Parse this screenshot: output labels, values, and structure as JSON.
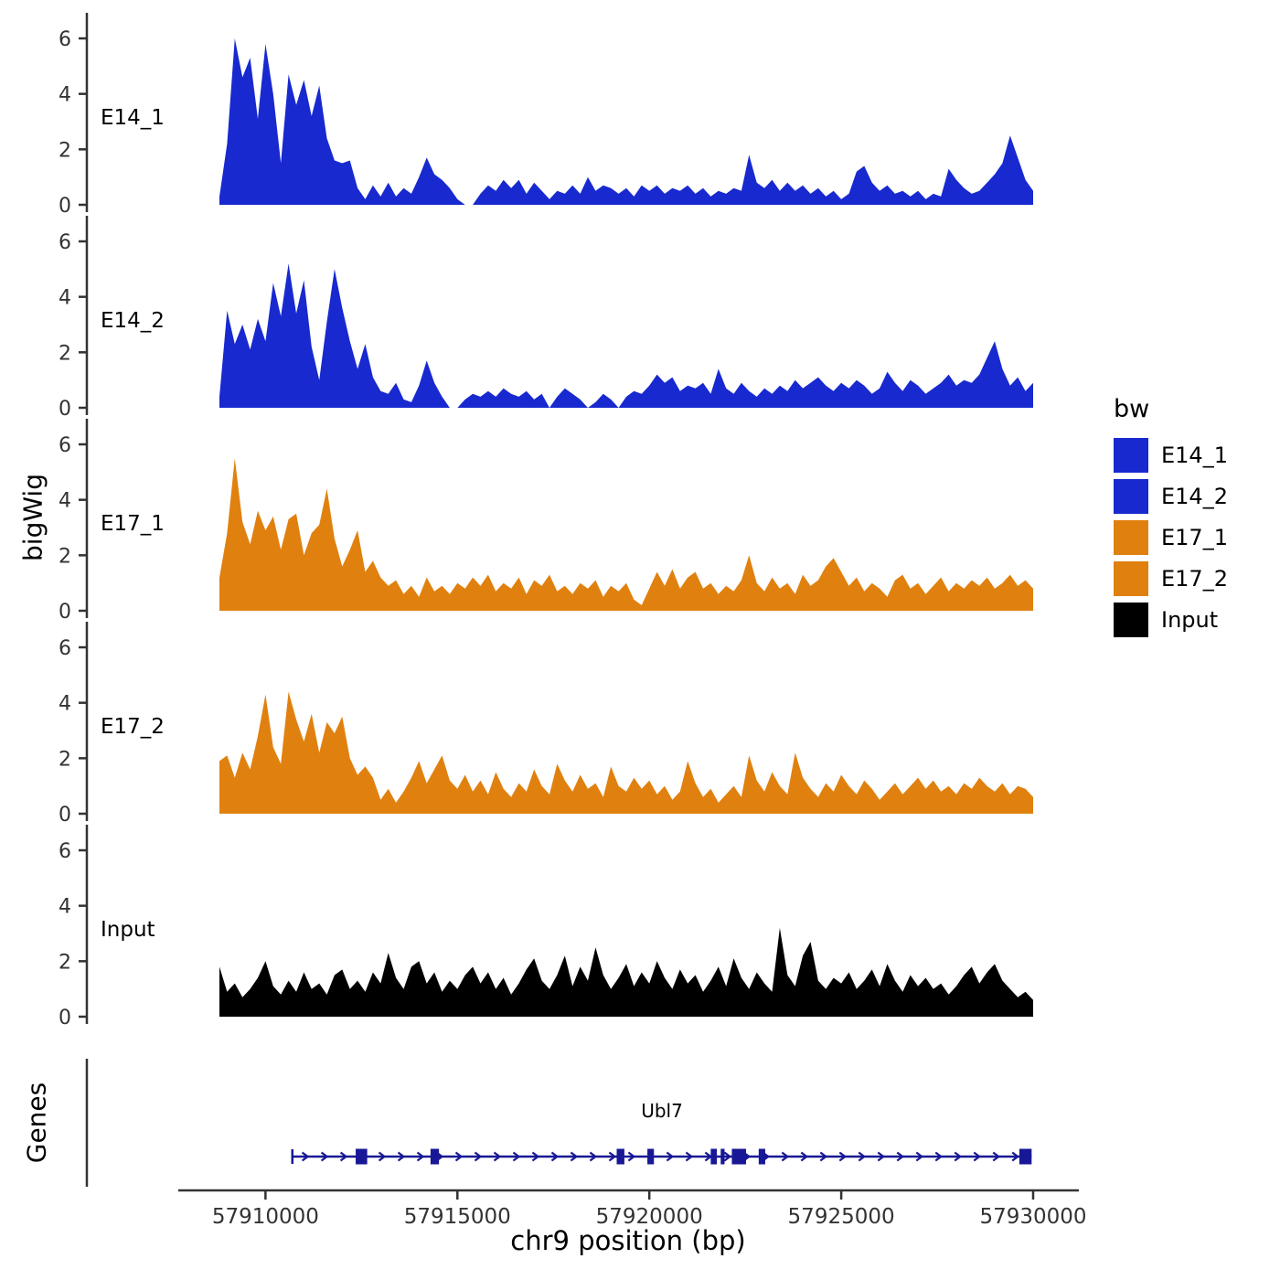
{
  "figure": {
    "y_axis_label": "bigWig",
    "genes_panel_label": "Genes",
    "x_axis_title": "chr9 position (bp)"
  },
  "legend": {
    "title": "bw",
    "items": [
      {
        "label": "E14_1",
        "color": "#1729CF"
      },
      {
        "label": "E14_2",
        "color": "#1729CF"
      },
      {
        "label": "E17_1",
        "color": "#E0810F"
      },
      {
        "label": "E17_2",
        "color": "#E0810F"
      },
      {
        "label": "Input",
        "color": "#000000"
      }
    ]
  },
  "chart_data": {
    "type": "area",
    "title": "",
    "xlabel": "chr9 position (bp)",
    "ylabel": "bigWig",
    "ylim": [
      0,
      6
    ],
    "y_ticks": [
      0,
      2,
      4,
      6
    ],
    "x_range": [
      57907800,
      57931200
    ],
    "x_ticks": [
      57910000,
      57915000,
      57920000,
      57925000,
      57930000
    ],
    "x_tick_labels": [
      "57910000",
      "57915000",
      "57920000",
      "57925000",
      "57930000"
    ],
    "x_start": 57908800,
    "x_step": 200,
    "axis_color": "#333333",
    "series": [
      {
        "name": "E14_1",
        "color": "#1729CF",
        "values": [
          0.3,
          2.2,
          6,
          4.6,
          5.3,
          3.1,
          5.8,
          4,
          1.5,
          4.7,
          3.6,
          4.5,
          3.2,
          4.3,
          2.4,
          1.6,
          1.5,
          1.6,
          0.6,
          0.2,
          0.7,
          0.3,
          0.8,
          0.3,
          0.6,
          0.4,
          1,
          1.7,
          1.1,
          0.9,
          0.6,
          0.2,
          0,
          0,
          0.4,
          0.7,
          0.5,
          0.9,
          0.6,
          0.9,
          0.4,
          0.8,
          0.5,
          0.2,
          0.5,
          0.4,
          0.7,
          0.4,
          1,
          0.5,
          0.7,
          0.6,
          0.4,
          0.6,
          0.3,
          0.7,
          0.5,
          0.7,
          0.4,
          0.6,
          0.5,
          0.7,
          0.4,
          0.6,
          0.3,
          0.5,
          0.4,
          0.6,
          0.5,
          1.8,
          0.8,
          0.6,
          0.9,
          0.5,
          0.8,
          0.5,
          0.7,
          0.4,
          0.6,
          0.3,
          0.5,
          0.2,
          0.4,
          1.2,
          1.4,
          0.8,
          0.5,
          0.7,
          0.4,
          0.5,
          0.3,
          0.5,
          0.2,
          0.4,
          0.3,
          1.3,
          0.9,
          0.6,
          0.4,
          0.5,
          0.8,
          1.1,
          1.5,
          2.5,
          1.7,
          0.9,
          0.5
        ]
      },
      {
        "name": "E14_2",
        "color": "#1729CF",
        "values": [
          0.4,
          3.5,
          2.3,
          3,
          2.1,
          3.2,
          2.4,
          4.5,
          3.3,
          5.2,
          3.4,
          4.6,
          2.2,
          1,
          3.1,
          5,
          3.6,
          2.4,
          1.4,
          2.3,
          1.1,
          0.6,
          0.5,
          0.9,
          0.3,
          0.2,
          0.8,
          1.7,
          0.9,
          0.4,
          0,
          0,
          0.3,
          0.5,
          0.4,
          0.6,
          0.4,
          0.7,
          0.5,
          0.4,
          0.6,
          0.3,
          0.5,
          0,
          0.4,
          0.7,
          0.5,
          0.3,
          0,
          0.2,
          0.5,
          0.3,
          0,
          0.4,
          0.6,
          0.5,
          0.8,
          1.2,
          0.9,
          1.1,
          0.6,
          0.8,
          0.7,
          0.9,
          0.5,
          1.4,
          0.7,
          0.5,
          0.9,
          0.6,
          0.4,
          0.7,
          0.5,
          0.8,
          0.6,
          1,
          0.7,
          0.9,
          1.1,
          0.8,
          0.6,
          0.9,
          0.7,
          1,
          0.8,
          0.5,
          0.7,
          1.3,
          0.9,
          0.6,
          1,
          0.8,
          0.5,
          0.7,
          0.9,
          1.2,
          0.8,
          1,
          0.9,
          1.2,
          1.8,
          2.4,
          1.4,
          0.8,
          1.1,
          0.6,
          0.9
        ]
      },
      {
        "name": "E17_1",
        "color": "#E0810F",
        "values": [
          1.2,
          2.8,
          5.5,
          3.2,
          2.4,
          3.6,
          2.9,
          3.4,
          2.2,
          3.3,
          3.5,
          2,
          2.8,
          3.1,
          4.4,
          2.6,
          1.6,
          2.2,
          2.9,
          1.4,
          1.8,
          1.2,
          0.9,
          1.1,
          0.6,
          0.9,
          0.5,
          1.2,
          0.7,
          0.9,
          0.6,
          1,
          0.8,
          1.2,
          0.9,
          1.3,
          0.7,
          1,
          0.8,
          1.2,
          0.6,
          1.1,
          0.9,
          1.3,
          0.7,
          0.9,
          0.6,
          1,
          0.8,
          1.1,
          0.5,
          0.9,
          0.7,
          1,
          0.4,
          0.2,
          0.8,
          1.4,
          0.9,
          1.5,
          0.8,
          1.2,
          1.4,
          0.8,
          1,
          0.6,
          0.9,
          0.7,
          1.1,
          2,
          1,
          0.7,
          1.2,
          0.8,
          1,
          0.6,
          1.3,
          0.9,
          1.1,
          1.6,
          1.9,
          1.4,
          0.9,
          1.2,
          0.7,
          1,
          0.8,
          0.5,
          1.1,
          1.3,
          0.8,
          1,
          0.6,
          0.9,
          1.2,
          0.7,
          1,
          0.8,
          1.1,
          0.9,
          1.2,
          0.8,
          1,
          1.3,
          0.9,
          1.1,
          0.8
        ]
      },
      {
        "name": "E17_2",
        "color": "#E0810F",
        "values": [
          1.9,
          2.1,
          1.3,
          2.2,
          1.6,
          2.8,
          4.3,
          2.4,
          1.8,
          4.4,
          3.4,
          2.6,
          3.6,
          2.2,
          3.3,
          2.9,
          3.5,
          2,
          1.4,
          1.7,
          1.3,
          0.5,
          0.9,
          0.4,
          0.8,
          1.3,
          1.9,
          1.1,
          1.6,
          2.1,
          1.2,
          0.9,
          1.4,
          0.8,
          1.2,
          0.7,
          1.5,
          0.9,
          0.6,
          1.1,
          0.8,
          1.6,
          1,
          0.7,
          1.8,
          1.2,
          0.8,
          1.4,
          0.9,
          1.1,
          0.6,
          1.7,
          1,
          0.8,
          1.3,
          0.9,
          1.2,
          0.7,
          1,
          0.5,
          0.8,
          1.9,
          1.1,
          0.6,
          0.9,
          0.4,
          0.7,
          1,
          0.6,
          2.1,
          1.2,
          0.8,
          1.5,
          1,
          0.7,
          2.2,
          1.3,
          0.9,
          0.6,
          1.1,
          0.8,
          1.4,
          1,
          0.7,
          1.2,
          0.9,
          0.5,
          0.8,
          1.1,
          0.7,
          1,
          1.3,
          0.9,
          1.2,
          0.8,
          1,
          0.7,
          1.1,
          0.9,
          1.3,
          1,
          0.8,
          1.1,
          0.7,
          1,
          0.9,
          0.6
        ]
      },
      {
        "name": "Input",
        "color": "#000000",
        "values": [
          1.8,
          0.9,
          1.2,
          0.7,
          1,
          1.4,
          2,
          1.1,
          0.8,
          1.3,
          0.9,
          1.6,
          1,
          1.2,
          0.8,
          1.5,
          1.7,
          1,
          1.3,
          0.9,
          1.6,
          1.2,
          2.3,
          1.4,
          1,
          1.8,
          2,
          1.2,
          1.6,
          0.9,
          1.3,
          1,
          1.5,
          1.8,
          1.2,
          1.6,
          1,
          1.4,
          0.8,
          1.2,
          1.7,
          2.1,
          1.3,
          1,
          1.5,
          2.2,
          1.1,
          1.8,
          1.3,
          2.5,
          1.5,
          1,
          1.4,
          1.9,
          1.1,
          1.6,
          1.2,
          2,
          1.4,
          1,
          1.7,
          1.2,
          1.5,
          0.9,
          1.3,
          1.8,
          1.1,
          2.1,
          1.4,
          1,
          1.6,
          1.2,
          0.9,
          3.2,
          1.5,
          1.1,
          2.2,
          2.7,
          1.3,
          1,
          1.4,
          1.2,
          1.6,
          1,
          1.3,
          1.7,
          1.1,
          1.9,
          1.3,
          0.9,
          1.5,
          1.1,
          1.4,
          1,
          1.2,
          0.8,
          1.1,
          1.5,
          1.8,
          1.2,
          1.6,
          1.9,
          1.3,
          1,
          0.7,
          0.9,
          0.6
        ]
      }
    ],
    "gene_track": {
      "color": "#181896",
      "gene": {
        "name": "Ubl7",
        "strand": "+",
        "start": 57910700,
        "end": 57929960,
        "exons": [
          [
            57912350,
            57912650
          ],
          [
            57914300,
            57914520
          ],
          [
            57919150,
            57919350
          ],
          [
            57919950,
            57920120
          ],
          [
            57921600,
            57921760
          ],
          [
            57921860,
            57921960
          ],
          [
            57922150,
            57922520
          ],
          [
            57922850,
            57923020
          ],
          [
            57929640,
            57929960
          ]
        ]
      }
    }
  }
}
